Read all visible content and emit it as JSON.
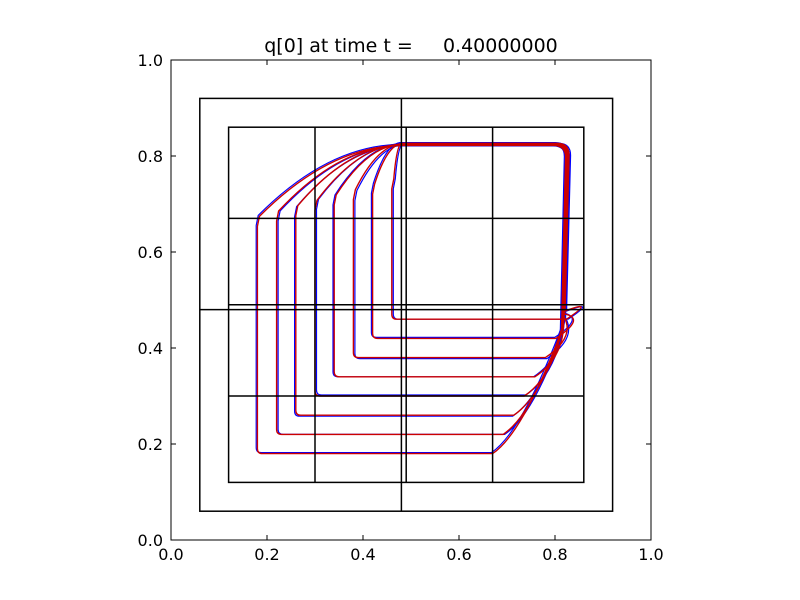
{
  "chart_data": {
    "type": "line",
    "title": "q[0] at time t =     0.40000000",
    "xlabel": "",
    "ylabel": "",
    "xlim": [
      0.0,
      1.0
    ],
    "ylim": [
      0.0,
      1.0
    ],
    "xticks": [
      "0.0",
      "0.2",
      "0.4",
      "0.6",
      "0.8",
      "1.0"
    ],
    "yticks": [
      "0.0",
      "0.2",
      "0.4",
      "0.6",
      "0.8",
      "1.0"
    ],
    "grid": false,
    "colors": {
      "contour_coarse": "#0000ff",
      "contour_fine": "#cc0000",
      "patch_edges": "#000000"
    },
    "patch_boxes": [
      {
        "x0": 0.06,
        "x1": 0.92,
        "y0": 0.06,
        "y1": 0.92
      },
      {
        "x0": 0.12,
        "x1": 0.86,
        "y0": 0.12,
        "y1": 0.86
      }
    ],
    "grid_lines": {
      "vertical": [
        {
          "x": 0.3,
          "y0": 0.12,
          "y1": 0.86
        },
        {
          "x": 0.48,
          "y0": 0.06,
          "y1": 0.92
        },
        {
          "x": 0.49,
          "y0": 0.12,
          "y1": 0.86
        },
        {
          "x": 0.67,
          "y0": 0.12,
          "y1": 0.86
        }
      ],
      "horizontal": [
        {
          "y": 0.3,
          "x0": 0.12,
          "x1": 0.86
        },
        {
          "y": 0.48,
          "x0": 0.06,
          "x1": 0.92
        },
        {
          "y": 0.49,
          "x0": 0.12,
          "x1": 0.86
        },
        {
          "y": 0.67,
          "x0": 0.12,
          "x1": 0.86
        }
      ]
    },
    "contour_corners": [
      {
        "x": 0.18,
        "y": 0.18
      },
      {
        "x": 0.22,
        "y": 0.22
      },
      {
        "x": 0.26,
        "y": 0.26
      },
      {
        "x": 0.3,
        "y": 0.3
      },
      {
        "x": 0.34,
        "y": 0.34
      },
      {
        "x": 0.38,
        "y": 0.38
      },
      {
        "x": 0.42,
        "y": 0.42
      },
      {
        "x": 0.46,
        "y": 0.46
      }
    ]
  }
}
